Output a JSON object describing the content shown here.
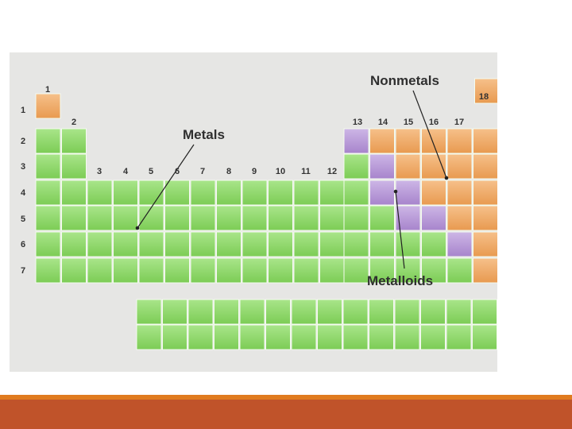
{
  "figure": {
    "group_labels": [
      "1",
      "2",
      "3",
      "4",
      "5",
      "6",
      "7",
      "8",
      "9",
      "10",
      "11",
      "12",
      "13",
      "14",
      "15",
      "16",
      "17",
      "18"
    ],
    "period_labels": [
      "1",
      "2",
      "3",
      "4",
      "5",
      "6",
      "7"
    ],
    "category_labels": {
      "metals": "Metals",
      "nonmetals": "Nonmetals",
      "metalloids": "Metalloids"
    },
    "colors": {
      "metal": "#8fd66a",
      "nonmetal": "#efaa66",
      "metalloid": "#b89ad6",
      "background": "#e6e6e4"
    }
  }
}
